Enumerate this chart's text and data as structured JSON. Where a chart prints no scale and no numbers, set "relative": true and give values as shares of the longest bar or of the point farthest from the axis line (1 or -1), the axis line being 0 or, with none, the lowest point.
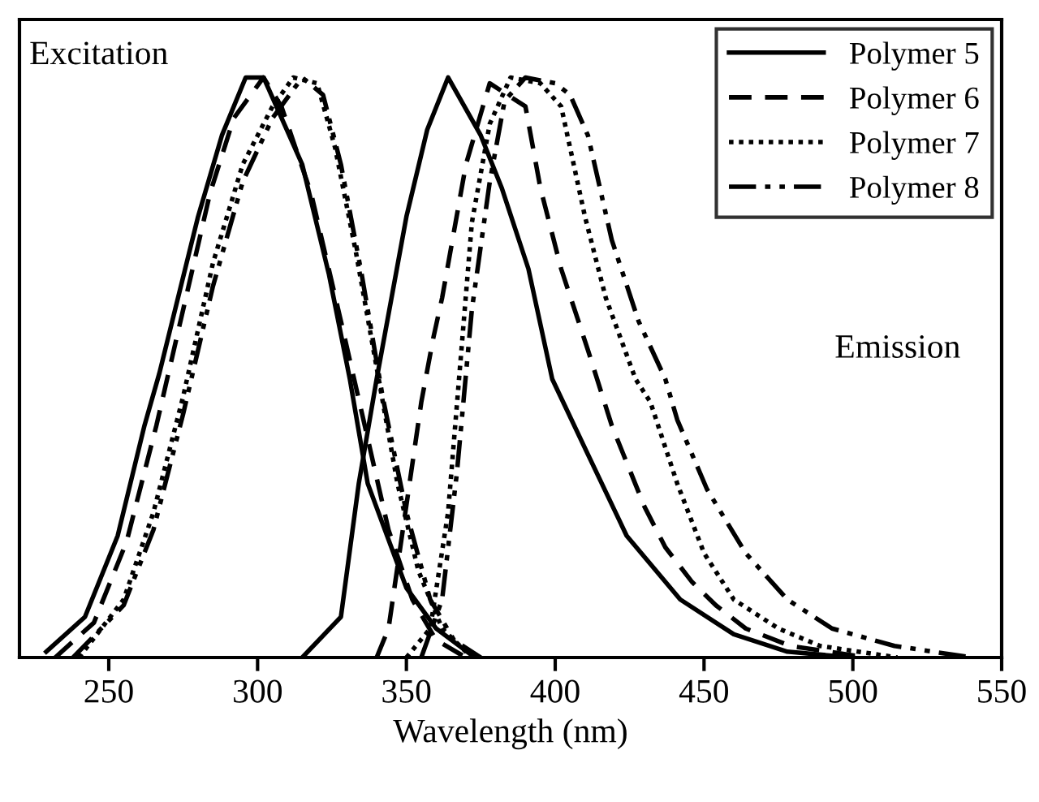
{
  "chart_data": {
    "type": "line",
    "xlabel": "Wavelength (nm)",
    "relative": true,
    "xlim": [
      220,
      550
    ],
    "xticks": [
      250,
      300,
      350,
      400,
      450,
      500,
      550
    ],
    "legend": "top right",
    "grid": false,
    "annotations": [
      "Excitation",
      "Emission"
    ],
    "series": [
      {
        "name": "Polymer 5",
        "color": "#000000",
        "line_style": "solid",
        "x": [
          229,
          242,
          253,
          262,
          267,
          280,
          288,
          296,
          302,
          315,
          324,
          331,
          337,
          350,
          360,
          373
        ],
        "values": [
          0.01,
          0.07,
          0.21,
          0.4,
          0.49,
          0.76,
          0.9,
          1.0,
          1.0,
          0.85,
          0.66,
          0.48,
          0.3,
          0.12,
          0.05,
          0.0
        ]
      },
      {
        "color": "#000000",
        "line_style": "solid",
        "x": [
          315,
          328,
          334,
          340,
          350,
          357,
          364,
          375,
          382,
          391,
          399,
          411,
          424,
          442,
          460,
          478,
          500
        ],
        "values": [
          0.0,
          0.07,
          0.3,
          0.48,
          0.76,
          0.91,
          1.0,
          0.9,
          0.81,
          0.67,
          0.48,
          0.35,
          0.21,
          0.1,
          0.04,
          0.01,
          0.0
        ]
      },
      {
        "name": "Polymer 6",
        "color": "#000000",
        "line_style": "dashed",
        "x": [
          232,
          245,
          256,
          266,
          275,
          284,
          292,
          302,
          308,
          318,
          328,
          336,
          344,
          352,
          360,
          370
        ],
        "values": [
          0.0,
          0.06,
          0.2,
          0.4,
          0.6,
          0.8,
          0.93,
          1.0,
          0.95,
          0.8,
          0.58,
          0.4,
          0.22,
          0.1,
          0.03,
          0.0
        ]
      },
      {
        "color": "#000000",
        "line_style": "dashed",
        "x": [
          340,
          344,
          355,
          359,
          362,
          370,
          378,
          390,
          395,
          402,
          411,
          419,
          430,
          437,
          446,
          454,
          464,
          479,
          505
        ],
        "values": [
          0.0,
          0.05,
          0.44,
          0.55,
          0.62,
          0.85,
          0.99,
          0.95,
          0.81,
          0.67,
          0.53,
          0.4,
          0.26,
          0.19,
          0.13,
          0.09,
          0.05,
          0.02,
          0.0
        ]
      },
      {
        "name": "Polymer 7",
        "color": "#000000",
        "line_style": "dotted",
        "x": [
          240,
          255,
          265,
          275,
          285,
          295,
          305,
          312,
          320,
          326,
          333,
          340,
          347,
          354,
          362,
          372
        ],
        "values": [
          0.0,
          0.1,
          0.25,
          0.45,
          0.68,
          0.85,
          0.95,
          1.0,
          0.99,
          0.88,
          0.7,
          0.5,
          0.3,
          0.15,
          0.05,
          0.0
        ]
      },
      {
        "color": "#000000",
        "line_style": "dotted",
        "x": [
          350,
          358,
          364,
          368,
          372,
          378,
          385,
          395,
          402,
          410,
          417,
          427,
          432,
          441,
          450,
          460,
          475,
          489,
          515
        ],
        "values": [
          0.0,
          0.05,
          0.25,
          0.5,
          0.75,
          0.92,
          1.0,
          0.99,
          0.95,
          0.76,
          0.62,
          0.48,
          0.44,
          0.3,
          0.18,
          0.1,
          0.05,
          0.02,
          0.0
        ]
      },
      {
        "name": "Polymer 8",
        "color": "#000000",
        "line_style": "dashdot",
        "x": [
          238,
          255,
          265,
          275,
          285,
          295,
          305,
          315,
          322,
          328,
          335,
          342,
          350,
          358,
          366,
          375
        ],
        "values": [
          0.0,
          0.09,
          0.22,
          0.42,
          0.64,
          0.82,
          0.93,
          1.0,
          0.97,
          0.85,
          0.66,
          0.45,
          0.25,
          0.1,
          0.03,
          0.0
        ]
      },
      {
        "color": "#000000",
        "line_style": "dashdot",
        "x": [
          355,
          362,
          367,
          372,
          378,
          383,
          390,
          400,
          405,
          411,
          419,
          428,
          437,
          441,
          451,
          464,
          478,
          493,
          514,
          540
        ],
        "values": [
          0.0,
          0.1,
          0.32,
          0.6,
          0.82,
          0.96,
          1.0,
          0.99,
          0.97,
          0.9,
          0.72,
          0.58,
          0.48,
          0.41,
          0.29,
          0.18,
          0.1,
          0.05,
          0.02,
          0.0
        ]
      }
    ]
  }
}
